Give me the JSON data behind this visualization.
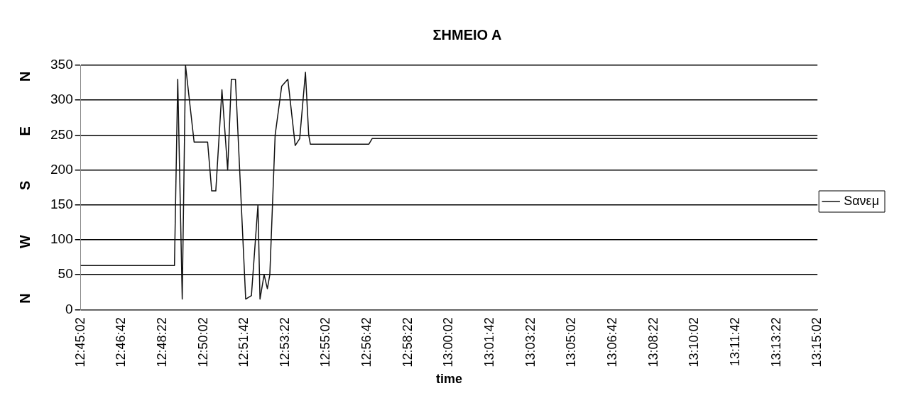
{
  "chart_data": {
    "type": "line",
    "title": "ΣΗΜΕΙΟ Α",
    "xlabel": "time",
    "ylabel": "N W S E N",
    "x": [
      12.75056,
      12.81417,
      12.81639,
      12.81944,
      12.82167,
      12.8275,
      12.83667,
      12.83944,
      12.84222,
      12.84639,
      12.85028,
      12.85278,
      12.85556,
      12.8625,
      12.86639,
      12.87083,
      12.87222,
      12.875,
      12.87722,
      12.87889,
      12.8825,
      12.88694,
      12.89111,
      12.89611,
      12.89917,
      12.90306,
      12.90528,
      12.90639,
      12.94611,
      12.94833,
      13.25056
    ],
    "series": [
      {
        "name": "Sανεμ",
        "color": "#111111",
        "values": [
          63,
          63,
          330,
          15,
          350,
          240,
          240,
          170,
          170,
          315,
          200,
          330,
          330,
          15,
          20,
          150,
          15,
          50,
          30,
          50,
          250,
          320,
          330,
          235,
          245,
          340,
          250,
          237,
          237,
          245,
          245
        ]
      }
    ],
    "xlim": [
      12.75056,
      13.25056
    ],
    "xticks": [
      {
        "value": 12.75056,
        "label": "12:45:02"
      },
      {
        "value": 12.77833,
        "label": "12:46:42"
      },
      {
        "value": 12.80611,
        "label": "12:48:22"
      },
      {
        "value": 12.83389,
        "label": "12:50:02"
      },
      {
        "value": 12.86167,
        "label": "12:51:42"
      },
      {
        "value": 12.88944,
        "label": "12:53:22"
      },
      {
        "value": 12.91722,
        "label": "12:55:02"
      },
      {
        "value": 12.945,
        "label": "12:56:42"
      },
      {
        "value": 12.97278,
        "label": "12:58:22"
      },
      {
        "value": 13.00056,
        "label": "13:00:02"
      },
      {
        "value": 13.02833,
        "label": "13:01:42"
      },
      {
        "value": 13.05611,
        "label": "13:03:22"
      },
      {
        "value": 13.08389,
        "label": "13:05:02"
      },
      {
        "value": 13.11167,
        "label": "13:06:42"
      },
      {
        "value": 13.13944,
        "label": "13:08:22"
      },
      {
        "value": 13.16722,
        "label": "13:10:02"
      },
      {
        "value": 13.195,
        "label": "13:11:42"
      },
      {
        "value": 13.22278,
        "label": "13:13:22"
      },
      {
        "value": 13.25056,
        "label": "13:15:02"
      }
    ],
    "ylim": [
      0,
      350
    ],
    "yticks": [
      0,
      50,
      100,
      150,
      200,
      250,
      300,
      350
    ],
    "grid": "y",
    "legend": "right",
    "marker": "none",
    "line_style": "solid"
  }
}
